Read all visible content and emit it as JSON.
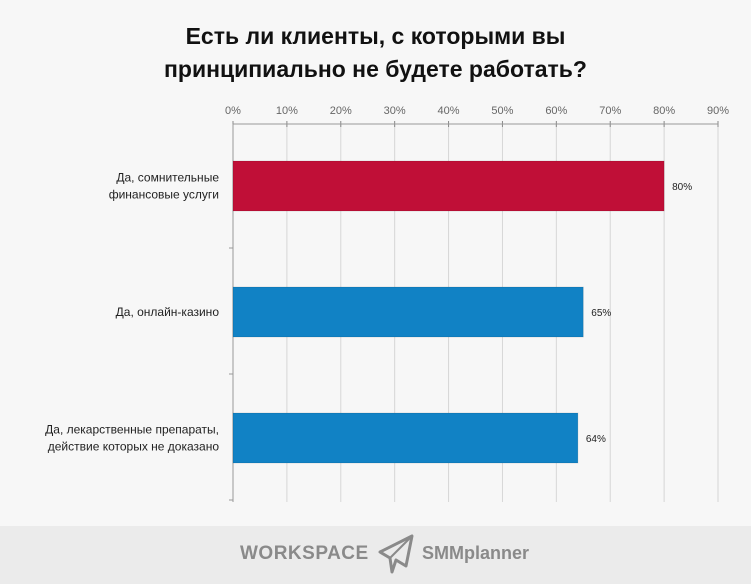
{
  "title_lines": [
    "Есть ли клиенты, с которыми вы",
    "принципиально не будете работать?"
  ],
  "chart_data": {
    "type": "bar",
    "orientation": "horizontal",
    "title": "Есть ли клиенты, с которыми вы принципиально не будете работать?",
    "categories": [
      [
        "Да, сомнительные",
        "финансовые услуги"
      ],
      [
        "Да, онлайн-казино"
      ],
      [
        "Да, лекарственные препараты,",
        "действие которых не доказано"
      ]
    ],
    "values": [
      80,
      65,
      64
    ],
    "data_labels": [
      "80%",
      "65%",
      "64%"
    ],
    "colors": [
      "#c00f37",
      "#1182c5",
      "#1182c5"
    ],
    "xlim": [
      0,
      90
    ],
    "xticks": [
      "0%",
      "10%",
      "20%",
      "30%",
      "40%",
      "50%",
      "60%",
      "70%",
      "80%",
      "90%"
    ],
    "axis_position": "top",
    "grid": true
  },
  "footer": {
    "workspace": "WORKSPACE",
    "smmplanner": "SMMplanner"
  }
}
